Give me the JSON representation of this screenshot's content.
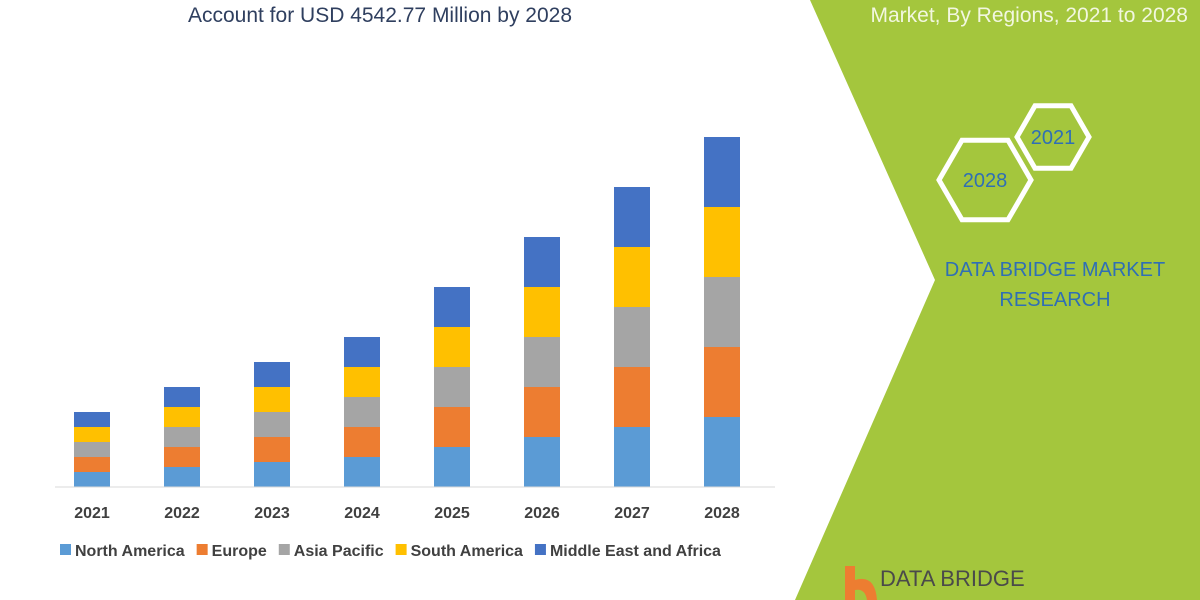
{
  "header": {
    "title": "Account for USD 4542.77 Million by 2028",
    "right_title": "Market, By Regions, 2021 to 2028"
  },
  "brand": {
    "hex_top": "2021",
    "hex_bottom": "2028",
    "name": "DATA BRIDGE MARKET RESEARCH",
    "logo_text": "DATA BRIDGE"
  },
  "colors": {
    "panel": "#a4c63d",
    "hex": "#ffffff"
  },
  "chart_data": {
    "type": "bar",
    "stacked": true,
    "categories": [
      "2021",
      "2022",
      "2023",
      "2024",
      "2025",
      "2026",
      "2027",
      "2028"
    ],
    "series": [
      {
        "name": "North America",
        "color": "#5b9bd5",
        "values": [
          15,
          20,
          25,
          30,
          40,
          50,
          60,
          70
        ]
      },
      {
        "name": "Europe",
        "color": "#ed7d31",
        "values": [
          15,
          20,
          25,
          30,
          40,
          50,
          60,
          70
        ]
      },
      {
        "name": "Asia Pacific",
        "color": "#a5a5a5",
        "values": [
          15,
          20,
          25,
          30,
          40,
          50,
          60,
          70
        ]
      },
      {
        "name": "South America",
        "color": "#ffc000",
        "values": [
          15,
          20,
          25,
          30,
          40,
          50,
          60,
          70
        ]
      },
      {
        "name": "Middle East and Africa",
        "color": "#4472c4",
        "values": [
          15,
          20,
          25,
          30,
          40,
          50,
          60,
          70
        ]
      }
    ],
    "legend": "bottom",
    "grid": false,
    "yaxis_visible": false
  }
}
